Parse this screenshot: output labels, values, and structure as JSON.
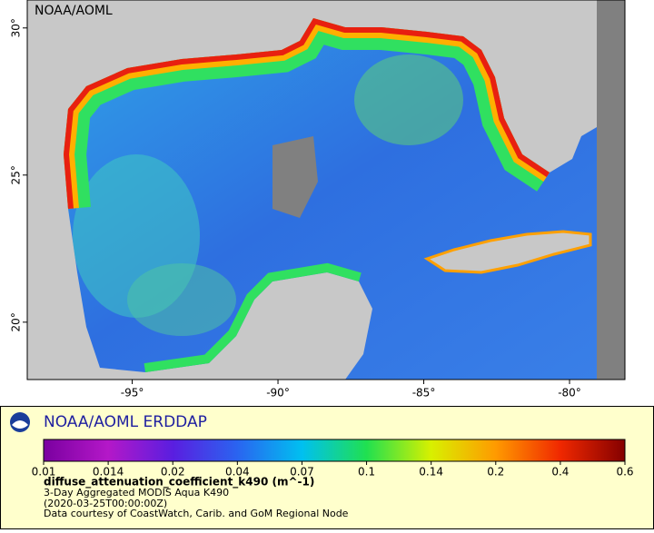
{
  "watermark": "NOAA/AOML",
  "map": {
    "xlim": [
      -98.6,
      -78.1
    ],
    "ylim": [
      18.05,
      30.95
    ],
    "xticks": [
      {
        "value": -95,
        "label": "-95°"
      },
      {
        "value": -90,
        "label": "-90°"
      },
      {
        "value": -85,
        "label": "-85°"
      },
      {
        "value": -80,
        "label": "-80°"
      }
    ],
    "yticks": [
      {
        "value": 20,
        "label": "20°"
      },
      {
        "value": 25,
        "label": "25°"
      },
      {
        "value": 30,
        "label": "30°"
      }
    ]
  },
  "legend": {
    "title": "NOAA/AOML ERDDAP",
    "colorbar": {
      "ticks": [
        0.01,
        0.014,
        0.02,
        0.04,
        0.07,
        0.1,
        0.14,
        0.2,
        0.4,
        0.6
      ],
      "colors": [
        "#7a00a0",
        "#b418c8",
        "#5a1ee0",
        "#2a64f0",
        "#00c0f0",
        "#20e050",
        "#d8f000",
        "#ff9a00",
        "#f02800",
        "#840000"
      ]
    },
    "variable": "diffuse_attenuation_coefficient_k490 (m^-1)",
    "lines": [
      "3-Day Aggregated MODIS Aqua K490",
      "(2020-03-25T00:00:00Z)",
      "Data courtesy of CoastWatch, Carib. and GoM Regional Node"
    ]
  }
}
